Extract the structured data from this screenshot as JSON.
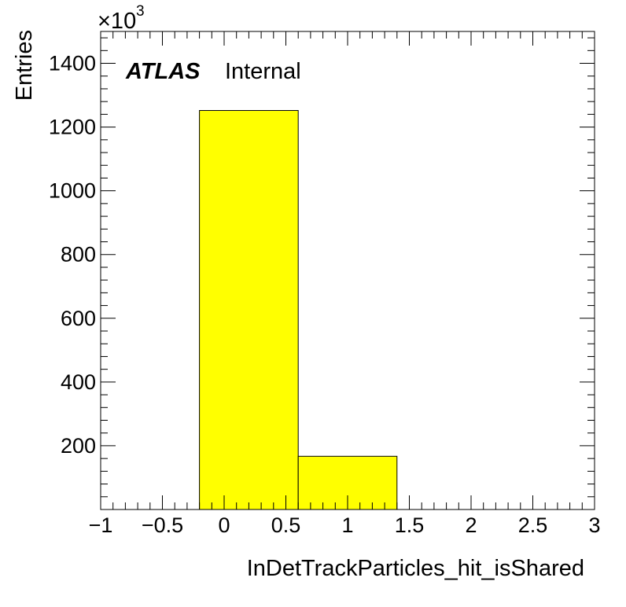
{
  "chart_data": {
    "type": "bar",
    "histogram": true,
    "xlabel": "InDetTrackParticles_hit_isShared",
    "ylabel": "Entries",
    "y_multiplier": "×10",
    "y_multiplier_exponent": "3",
    "experiment_label": "ATLAS",
    "status_label": "Internal",
    "xlim": [
      -1,
      3
    ],
    "ylim": [
      0,
      1500
    ],
    "x_ticks": [
      {
        "value": -1,
        "label": "−1"
      },
      {
        "value": -0.5,
        "label": "−0.5"
      },
      {
        "value": 0,
        "label": "0"
      },
      {
        "value": 0.5,
        "label": "0.5"
      },
      {
        "value": 1,
        "label": "1"
      },
      {
        "value": 1.5,
        "label": "1.5"
      },
      {
        "value": 2,
        "label": "2"
      },
      {
        "value": 2.5,
        "label": "2.5"
      },
      {
        "value": 3,
        "label": "3"
      }
    ],
    "y_ticks": [
      {
        "value": 200,
        "label": "200"
      },
      {
        "value": 400,
        "label": "400"
      },
      {
        "value": 600,
        "label": "600"
      },
      {
        "value": 800,
        "label": "800"
      },
      {
        "value": 1000,
        "label": "1000"
      },
      {
        "value": 1200,
        "label": "1200"
      },
      {
        "value": 1400,
        "label": "1400"
      }
    ],
    "bins": [
      {
        "x_low": -0.2,
        "x_high": 0.6,
        "value": 1252
      },
      {
        "x_low": 0.6,
        "x_high": 1.4,
        "value": 167
      }
    ],
    "fill_color": "#ffff00",
    "line_color": "#000000",
    "grid": false,
    "legend": "none"
  }
}
